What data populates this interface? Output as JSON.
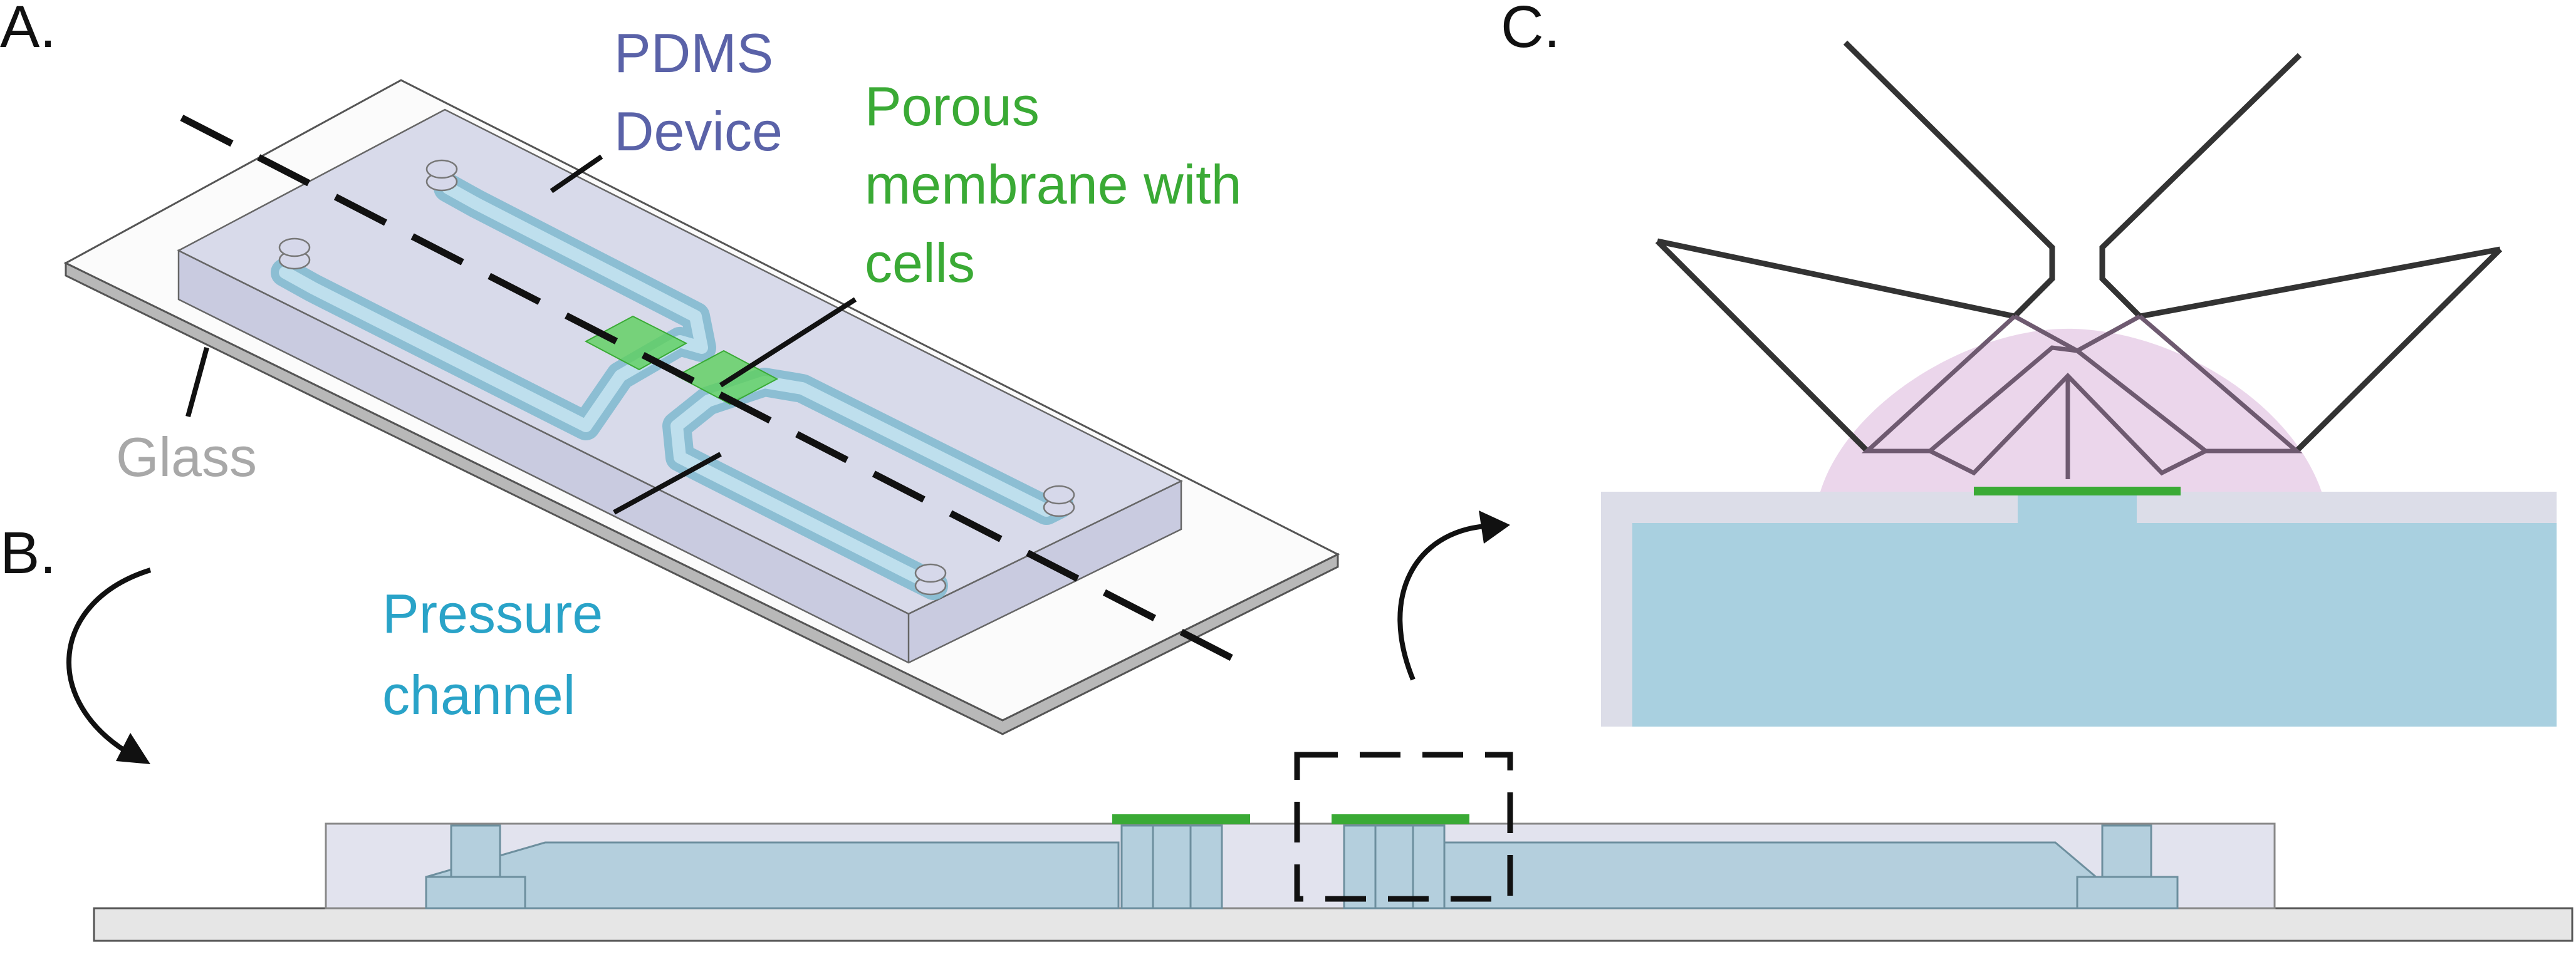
{
  "panels": {
    "a": "A.",
    "b": "B.",
    "c": "C."
  },
  "labels": {
    "pdms_line1": "PDMS",
    "pdms_line2": "Device",
    "membrane_line1": "Porous",
    "membrane_line2": "membrane with",
    "membrane_line3": "cells",
    "glass": "Glass",
    "pressure_line1": "Pressure",
    "pressure_line2": "channel"
  },
  "colors": {
    "pdms": "#5a62a8",
    "membrane": "#3aaa35",
    "glass": "#a8a8a8",
    "pressure": "#29a3c8",
    "channel_fill": "#a9d0e0",
    "device_fill": "#d8d9ea",
    "dome_fill": "#e8cfe8"
  }
}
